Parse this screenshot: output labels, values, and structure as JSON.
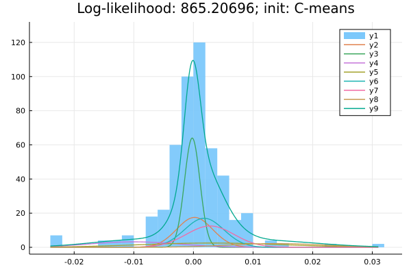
{
  "chart_data": {
    "type": "bar",
    "title": "Log-likelihood: 865.20696; init: C-means",
    "xlabel": "",
    "ylabel": "",
    "xlim": [
      -0.0275,
      0.035
    ],
    "ylim": [
      -4,
      132
    ],
    "xticks": [
      -0.02,
      -0.01,
      0.0,
      0.01,
      0.02,
      0.03
    ],
    "xtick_labels": [
      "-0.02",
      "-0.01",
      "0.00",
      "0.01",
      "0.02",
      "0.03"
    ],
    "yticks": [
      0,
      20,
      40,
      60,
      80,
      100,
      120
    ],
    "ytick_labels": [
      "0",
      "20",
      "40",
      "60",
      "80",
      "100",
      "120"
    ],
    "grid": true,
    "legend_position": "top-right",
    "histogram": {
      "name": "y1",
      "color": "#7cc8fb",
      "bins": [
        {
          "x0": -0.024,
          "x1": -0.022,
          "count": 7
        },
        {
          "x0": -0.016,
          "x1": -0.014,
          "count": 4
        },
        {
          "x0": -0.014,
          "x1": -0.012,
          "count": 4
        },
        {
          "x0": -0.012,
          "x1": -0.01,
          "count": 7
        },
        {
          "x0": -0.008,
          "x1": -0.006,
          "count": 18
        },
        {
          "x0": -0.006,
          "x1": -0.004,
          "count": 22
        },
        {
          "x0": -0.004,
          "x1": -0.002,
          "count": 60
        },
        {
          "x0": -0.002,
          "x1": 0.0,
          "count": 100
        },
        {
          "x0": 0.0,
          "x1": 0.002,
          "count": 120
        },
        {
          "x0": 0.002,
          "x1": 0.004,
          "count": 58
        },
        {
          "x0": 0.004,
          "x1": 0.006,
          "count": 42
        },
        {
          "x0": 0.006,
          "x1": 0.008,
          "count": 16
        },
        {
          "x0": 0.008,
          "x1": 0.01,
          "count": 20
        },
        {
          "x0": 0.012,
          "x1": 0.014,
          "count": 4
        },
        {
          "x0": 0.014,
          "x1": 0.016,
          "count": 2
        },
        {
          "x0": 0.022,
          "x1": 0.024,
          "count": 2
        },
        {
          "x0": 0.03,
          "x1": 0.032,
          "count": 2
        }
      ]
    },
    "series": [
      {
        "name": "y2",
        "color": "#e0824f",
        "kind": "gauss",
        "amp": 17.5,
        "mu": 0.0002,
        "sigma": 0.003
      },
      {
        "name": "y3",
        "color": "#3aa65b",
        "kind": "gauss",
        "amp": 64,
        "mu": -0.0002,
        "sigma": 0.0013
      },
      {
        "name": "y4",
        "color": "#c474d9",
        "kind": "gauss",
        "amp": 3.2,
        "mu": -0.01,
        "sigma": 0.0075
      },
      {
        "name": "y5",
        "color": "#a4a22c",
        "kind": "gauss",
        "amp": 2.5,
        "mu": 0.003,
        "sigma": 0.012
      },
      {
        "name": "y6",
        "color": "#1bb3b1",
        "kind": "gauss",
        "amp": 17,
        "mu": 0.0018,
        "sigma": 0.0033
      },
      {
        "name": "y7",
        "color": "#f06ba5",
        "kind": "gauss",
        "amp": 12.5,
        "mu": 0.0028,
        "sigma": 0.004
      },
      {
        "name": "y8",
        "color": "#c79a52",
        "kind": "gauss",
        "amp": 2.2,
        "mu": 0.014,
        "sigma": 0.008
      },
      {
        "name": "y9",
        "color": "#00a88f",
        "kind": "mixture"
      }
    ]
  }
}
